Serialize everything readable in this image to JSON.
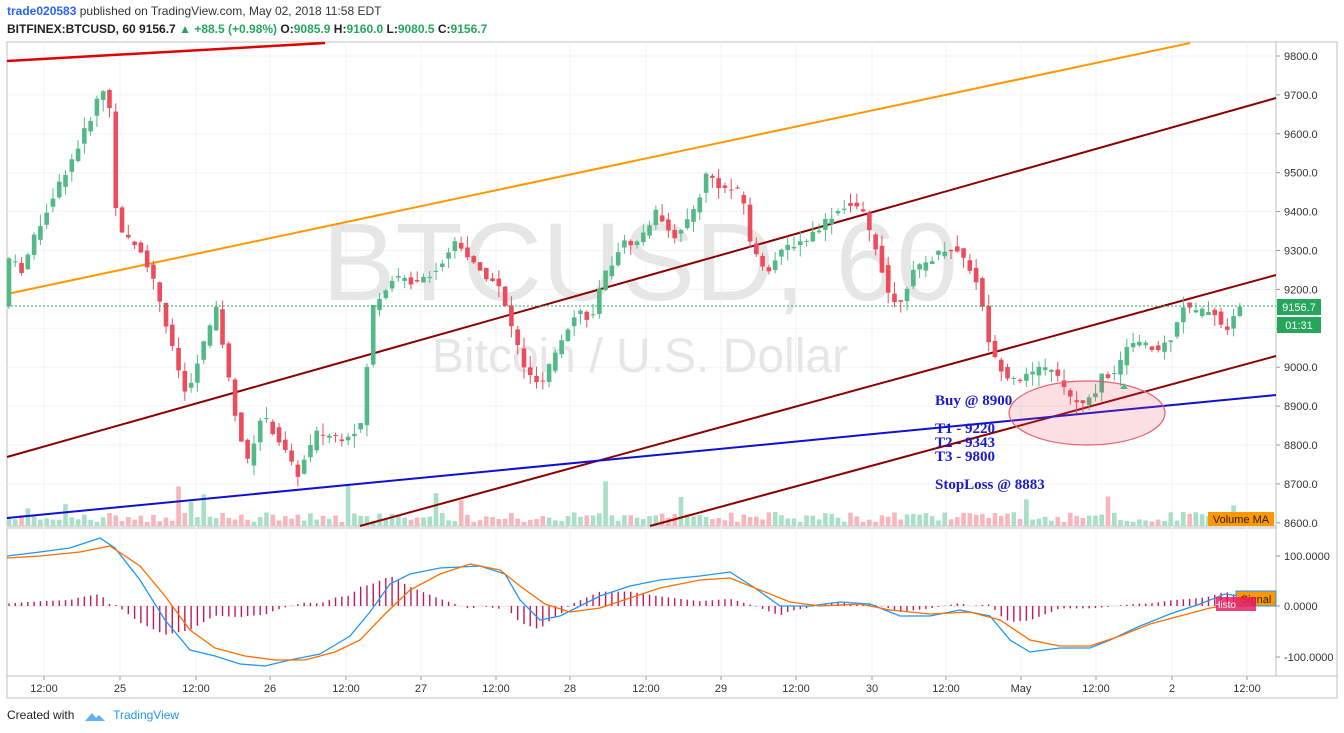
{
  "header": {
    "user": "trade020583",
    "published": "published on TradingView.com, May 02, 2018 11:58 EDT",
    "symbol": "BITFINEX:BTCUSD, 60",
    "last": "9156.7",
    "change_arrow": "▲",
    "change": "+88.5 (+0.98%)",
    "o_label": "O:",
    "o_value": "9085.9",
    "h_label": "H:",
    "h_value": "9160.0",
    "l_label": "L:",
    "l_value": "9080.5",
    "c_label": "C:",
    "c_value": "9156.7"
  },
  "footer": {
    "created_with": "Created with",
    "brand": "TradingView"
  },
  "colors": {
    "up": "#53b987",
    "down": "#eb4d5c",
    "vol_up": "#a8dfc6",
    "vol_down": "#f7b6bc",
    "channel": "#8b0000",
    "orange": "#ff9800",
    "red": "#e00000",
    "blue": "#1010d0",
    "macd": "#2196f3",
    "signal": "#ff6d00",
    "hist": "#c2185b",
    "annotation": "#1a1acd"
  },
  "chart_data": {
    "type": "candlestick",
    "symbol": "BTCUSD",
    "timeframe": "60",
    "watermark_line1": "BTCUSD, 60",
    "watermark_line2": "Bitcoin / U.S. Dollar",
    "price_axis": {
      "ylim": [
        8580,
        9850
      ],
      "ticks": [
        "9800.0",
        "9700.0",
        "9600.0",
        "9500.0",
        "9400.0",
        "9300.0",
        "9200.0",
        "9100.0",
        "9000.0",
        "8900.0",
        "8800.0",
        "8700.0",
        "8600.0"
      ],
      "last_price_label": "9156.7",
      "countdown_label": "01:31"
    },
    "time_axis": {
      "ticks": [
        "12:00",
        "25",
        "12:00",
        "26",
        "12:00",
        "27",
        "12:00",
        "28",
        "12:00",
        "29",
        "12:00",
        "30",
        "12:00",
        "May",
        "12:00",
        "2",
        "12:00"
      ]
    },
    "volume_label": "Volume MA",
    "oscillator": {
      "ticks": [
        "100.0000",
        "0.0000",
        "-100.0000"
      ],
      "labels": [
        "Signal",
        "Histogram"
      ]
    },
    "annotations": [
      {
        "text": "Buy @ 8900",
        "price": 8900
      },
      {
        "text": "T1 - 9220",
        "price": 8800
      },
      {
        "text": "T2 - 9343",
        "price": 8765
      },
      {
        "text": "T3 - 9800",
        "price": 8730
      },
      {
        "text": "StopLoss @ 8883",
        "price": 8655
      }
    ]
  }
}
